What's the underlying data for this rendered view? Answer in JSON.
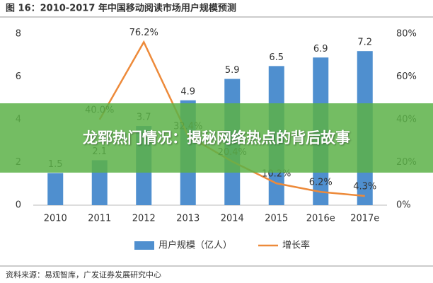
{
  "chart_data": {
    "type": "bar",
    "title": "图 16：2010-2017 年中国移动阅读市场用户规模预测",
    "categories": [
      "2010",
      "2011",
      "2012",
      "2013",
      "2014",
      "2015",
      "2016e",
      "2017e"
    ],
    "series": [
      {
        "name": "用户规模（亿人）",
        "color": "#4f8fcf",
        "values": [
          1.5,
          2.1,
          3.7,
          4.9,
          5.9,
          6.5,
          6.9,
          7.2
        ]
      },
      {
        "name": "增长率",
        "color": "#ed8a3a",
        "axis": "y2",
        "type": "line",
        "values": [
          null,
          40.0,
          76.2,
          32.4,
          20.4,
          10.2,
          6.2,
          4.3
        ],
        "value_labels": [
          null,
          "40.0%",
          "76.2%",
          "32.4%",
          "20.4%",
          "10.2%",
          "6.2%",
          "4.3%"
        ]
      }
    ],
    "ylim": [
      0,
      8
    ],
    "yticks": [
      0,
      2,
      4,
      6,
      8
    ],
    "y2lim": [
      0,
      80
    ],
    "y2ticks": [
      {
        "value": 0,
        "label": "0%"
      },
      {
        "value": 20,
        "label": "20%"
      },
      {
        "value": 40,
        "label": "40%"
      },
      {
        "value": 60,
        "label": "60%"
      },
      {
        "value": 80,
        "label": "80%"
      }
    ],
    "grid": false,
    "source": "资料来源：易观智库，广发证券发展研究中心"
  },
  "banner": "龙郓热门情况：揭秘网络热点的背后故事"
}
